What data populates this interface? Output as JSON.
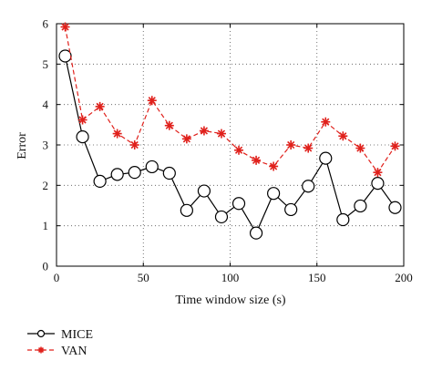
{
  "chart_data": {
    "type": "line",
    "title": "",
    "xlabel": "Time window size (s)",
    "ylabel": "Error",
    "xlim": [
      0,
      200
    ],
    "ylim": [
      0,
      6
    ],
    "x_ticks": [
      "0",
      "50",
      "100",
      "150",
      "200"
    ],
    "y_ticks": [
      "0",
      "1",
      "2",
      "3",
      "4",
      "5",
      "6"
    ],
    "x_tick_values": [
      0,
      50,
      100,
      150,
      200
    ],
    "y_tick_values": [
      0,
      1,
      2,
      3,
      4,
      5,
      6
    ],
    "grid": "dotted",
    "legend_placement": "below-left",
    "series": [
      {
        "name": "MICE",
        "color": "#000000",
        "line_style": "solid",
        "marker": "circle",
        "x": [
          5,
          15,
          25,
          35,
          45,
          55,
          65,
          75,
          85,
          95,
          105,
          115,
          125,
          135,
          145,
          155,
          165,
          175,
          185,
          195
        ],
        "values": [
          5.2,
          3.2,
          2.1,
          2.27,
          2.32,
          2.46,
          2.3,
          1.38,
          1.86,
          1.22,
          1.55,
          0.82,
          1.8,
          1.4,
          1.98,
          2.67,
          1.15,
          1.49,
          2.05,
          1.45
        ]
      },
      {
        "name": "VAN",
        "color": "#e0201b",
        "line_style": "dashed",
        "marker": "asterisk",
        "x": [
          5,
          15,
          25,
          35,
          45,
          55,
          65,
          75,
          85,
          95,
          105,
          115,
          125,
          135,
          145,
          155,
          165,
          175,
          185,
          195
        ],
        "values": [
          5.92,
          3.62,
          3.95,
          3.28,
          3.0,
          4.1,
          3.48,
          3.15,
          3.35,
          3.28,
          2.87,
          2.62,
          2.47,
          3.0,
          2.92,
          3.57,
          3.22,
          2.92,
          2.32,
          2.97
        ]
      }
    ]
  }
}
